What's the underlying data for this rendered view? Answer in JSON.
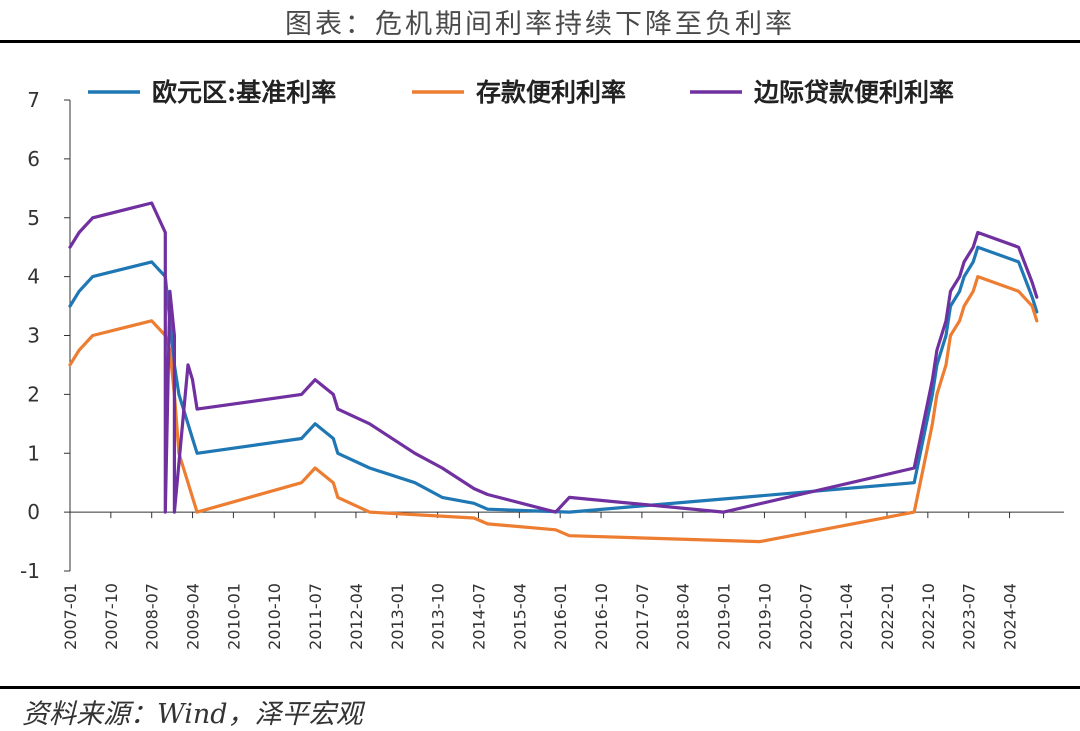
{
  "title": "图表：危机期间利率持续下降至负利率",
  "source": "资料来源：Wind，泽平宏观",
  "chart_data": {
    "type": "line",
    "ylim": [
      -1,
      7
    ],
    "yticks": [
      -1,
      0,
      1,
      2,
      3,
      4,
      5,
      6,
      7
    ],
    "xlim": [
      "2007-01",
      "2025-04"
    ],
    "xticks": [
      "2007-01",
      "2007-10",
      "2008-07",
      "2009-04",
      "2010-01",
      "2010-10",
      "2011-07",
      "2012-04",
      "2013-01",
      "2013-10",
      "2014-07",
      "2015-04",
      "2016-01",
      "2016-10",
      "2017-07",
      "2018-04",
      "2019-01",
      "2019-10",
      "2020-07",
      "2021-04",
      "2022-01",
      "2022-10",
      "2023-07",
      "2024-04"
    ],
    "grid": false,
    "legend_position": "top",
    "series": [
      {
        "name": "欧元区:基准利率",
        "color": "#1f77b4",
        "points": [
          [
            "2007-01",
            3.5
          ],
          [
            "2007-03",
            3.75
          ],
          [
            "2007-06",
            4.0
          ],
          [
            "2008-07",
            4.25
          ],
          [
            "2008-10",
            4.0
          ],
          [
            "2008-11",
            3.25
          ],
          [
            "2008-12",
            2.5
          ],
          [
            "2009-01",
            2.0
          ],
          [
            "2009-03",
            1.5
          ],
          [
            "2009-04",
            1.25
          ],
          [
            "2009-05",
            1.0
          ],
          [
            "2011-04",
            1.25
          ],
          [
            "2011-07",
            1.5
          ],
          [
            "2011-11",
            1.25
          ],
          [
            "2011-12",
            1.0
          ],
          [
            "2012-07",
            0.75
          ],
          [
            "2013-05",
            0.5
          ],
          [
            "2013-11",
            0.25
          ],
          [
            "2014-06",
            0.15
          ],
          [
            "2014-09",
            0.05
          ],
          [
            "2016-03",
            0.0
          ],
          [
            "2022-07",
            0.5
          ],
          [
            "2022-09",
            1.25
          ],
          [
            "2022-11",
            2.0
          ],
          [
            "2022-12",
            2.5
          ],
          [
            "2023-02",
            3.0
          ],
          [
            "2023-03",
            3.5
          ],
          [
            "2023-05",
            3.75
          ],
          [
            "2023-06",
            4.0
          ],
          [
            "2023-08",
            4.25
          ],
          [
            "2023-09",
            4.5
          ],
          [
            "2024-06",
            4.25
          ],
          [
            "2024-09",
            3.65
          ],
          [
            "2024-10",
            3.4
          ]
        ]
      },
      {
        "name": "存款便利利率",
        "color": "#ed7d31",
        "points": [
          [
            "2007-01",
            2.5
          ],
          [
            "2007-03",
            2.75
          ],
          [
            "2007-06",
            3.0
          ],
          [
            "2008-07",
            3.25
          ],
          [
            "2008-10",
            3.0
          ],
          [
            "2008-11",
            2.75
          ],
          [
            "2008-12",
            2.0
          ],
          [
            "2009-01",
            1.0
          ],
          [
            "2009-03",
            0.5
          ],
          [
            "2009-04",
            0.25
          ],
          [
            "2009-05",
            0.0
          ],
          [
            "2011-04",
            0.5
          ],
          [
            "2011-07",
            0.75
          ],
          [
            "2011-11",
            0.5
          ],
          [
            "2011-12",
            0.25
          ],
          [
            "2012-07",
            0.0
          ],
          [
            "2014-06",
            -0.1
          ],
          [
            "2014-09",
            -0.2
          ],
          [
            "2015-12",
            -0.3
          ],
          [
            "2016-03",
            -0.4
          ],
          [
            "2019-09",
            -0.5
          ],
          [
            "2022-07",
            0.0
          ],
          [
            "2022-09",
            0.75
          ],
          [
            "2022-11",
            1.5
          ],
          [
            "2022-12",
            2.0
          ],
          [
            "2023-02",
            2.5
          ],
          [
            "2023-03",
            3.0
          ],
          [
            "2023-05",
            3.25
          ],
          [
            "2023-06",
            3.5
          ],
          [
            "2023-08",
            3.75
          ],
          [
            "2023-09",
            4.0
          ],
          [
            "2024-06",
            3.75
          ],
          [
            "2024-09",
            3.5
          ],
          [
            "2024-10",
            3.25
          ]
        ]
      },
      {
        "name": "边际贷款便利利率",
        "color": "#7030a0",
        "points": [
          [
            "2007-01",
            4.5
          ],
          [
            "2007-03",
            4.75
          ],
          [
            "2007-06",
            5.0
          ],
          [
            "2008-07",
            5.25
          ],
          [
            "2008-10",
            4.75
          ],
          [
            "2008-10",
            0.0
          ],
          [
            "2008-11",
            3.75
          ],
          [
            "2008-12",
            3.0
          ],
          [
            "2008-12",
            0.0
          ],
          [
            "2009-03",
            2.5
          ],
          [
            "2009-04",
            2.25
          ],
          [
            "2009-05",
            1.75
          ],
          [
            "2011-04",
            2.0
          ],
          [
            "2011-07",
            2.25
          ],
          [
            "2011-11",
            2.0
          ],
          [
            "2011-12",
            1.75
          ],
          [
            "2012-07",
            1.5
          ],
          [
            "2013-05",
            1.0
          ],
          [
            "2013-11",
            0.75
          ],
          [
            "2014-06",
            0.4
          ],
          [
            "2014-09",
            0.3
          ],
          [
            "2015-12",
            0.0
          ],
          [
            "2016-03",
            0.25
          ],
          [
            "2019-01",
            0.0
          ],
          [
            "2022-07",
            0.75
          ],
          [
            "2022-09",
            1.5
          ],
          [
            "2022-11",
            2.25
          ],
          [
            "2022-12",
            2.75
          ],
          [
            "2023-02",
            3.25
          ],
          [
            "2023-03",
            3.75
          ],
          [
            "2023-05",
            4.0
          ],
          [
            "2023-06",
            4.25
          ],
          [
            "2023-08",
            4.5
          ],
          [
            "2023-09",
            4.75
          ],
          [
            "2024-06",
            4.5
          ],
          [
            "2024-09",
            3.9
          ],
          [
            "2024-10",
            3.65
          ]
        ]
      }
    ]
  }
}
